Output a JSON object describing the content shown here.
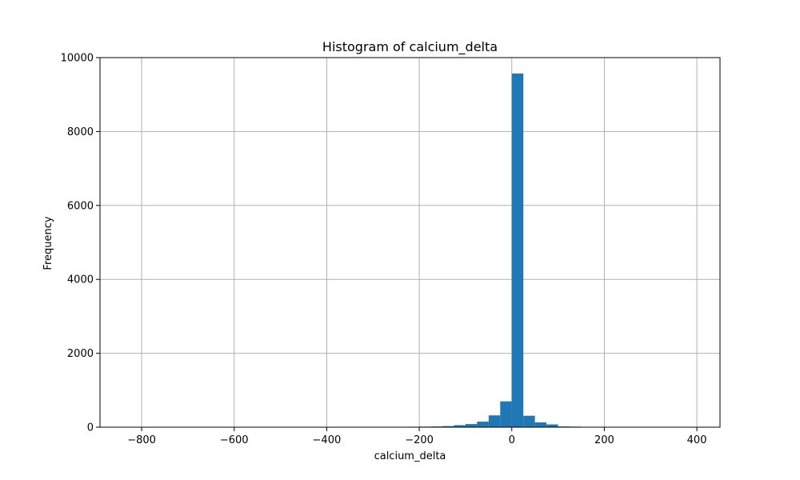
{
  "chart_data": {
    "type": "bar",
    "title": "Histogram of calcium_delta",
    "xlabel": "calcium_delta",
    "ylabel": "Frequency",
    "xlim": [
      -890,
      450
    ],
    "ylim": [
      0,
      10000
    ],
    "xticks": [
      -800,
      -600,
      -400,
      -200,
      0,
      200,
      400
    ],
    "xtick_labels": [
      "−800",
      "−600",
      "−400",
      "−200",
      "0",
      "200",
      "400"
    ],
    "yticks": [
      0,
      2000,
      4000,
      6000,
      8000,
      10000
    ],
    "ytick_labels": [
      "0",
      "2000",
      "4000",
      "6000",
      "8000",
      "10000"
    ],
    "grid": true,
    "bar_color": "#1f77b4",
    "bins": [
      {
        "x0": -275,
        "x1": -250,
        "value": 8
      },
      {
        "x0": -250,
        "x1": -225,
        "value": 10
      },
      {
        "x0": -225,
        "x1": -200,
        "value": 12
      },
      {
        "x0": -200,
        "x1": -175,
        "value": 15
      },
      {
        "x0": -175,
        "x1": -150,
        "value": 20
      },
      {
        "x0": -150,
        "x1": -125,
        "value": 30
      },
      {
        "x0": -125,
        "x1": -100,
        "value": 55
      },
      {
        "x0": -100,
        "x1": -75,
        "value": 85
      },
      {
        "x0": -75,
        "x1": -50,
        "value": 150
      },
      {
        "x0": -50,
        "x1": -25,
        "value": 320
      },
      {
        "x0": -25,
        "x1": 0,
        "value": 700
      },
      {
        "x0": 0,
        "x1": 25,
        "value": 9570
      },
      {
        "x0": 25,
        "x1": 50,
        "value": 310
      },
      {
        "x0": 50,
        "x1": 75,
        "value": 130
      },
      {
        "x0": 75,
        "x1": 100,
        "value": 75
      },
      {
        "x0": 100,
        "x1": 125,
        "value": 20
      },
      {
        "x0": 125,
        "x1": 150,
        "value": 15
      },
      {
        "x0": 150,
        "x1": 175,
        "value": 10
      }
    ]
  }
}
